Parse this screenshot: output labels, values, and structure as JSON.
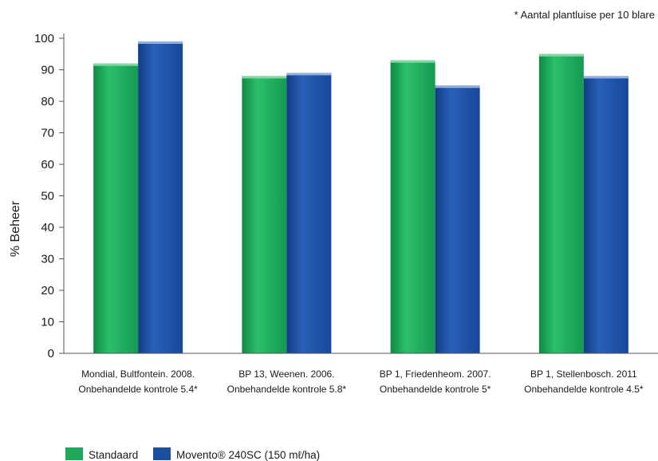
{
  "chart_data": {
    "type": "bar",
    "ylabel": "% Beheer",
    "xlabel": "",
    "ylim": [
      0,
      100
    ],
    "yticks": [
      0,
      10,
      20,
      30,
      40,
      50,
      60,
      70,
      80,
      90,
      100
    ],
    "note": "* Aantal plantluise per 10 blare",
    "categories": [
      [
        "Mondial, Bultfontein. 2008.",
        "Onbehandelde kontrole 5.4*"
      ],
      [
        "BP 13, Weenen. 2006.",
        "Onbehandelde kontrole 5.8*"
      ],
      [
        "BP 1, Friedenheom. 2007.",
        "Onbehandelde kontrole 5*"
      ],
      [
        "BP 1, Stellenbosch. 2011",
        "Onbehandelde kontrole 4.5*"
      ]
    ],
    "series": [
      {
        "name": "Standaard",
        "values": [
          92,
          88,
          93,
          95
        ],
        "color": "#1fa95b"
      },
      {
        "name": "Movento® 240SC (150 mℓ/ha)",
        "values": [
          99,
          89,
          85,
          88
        ],
        "color": "#1d4fa0"
      }
    ],
    "grid": false,
    "legend_position": "bottom-left"
  }
}
